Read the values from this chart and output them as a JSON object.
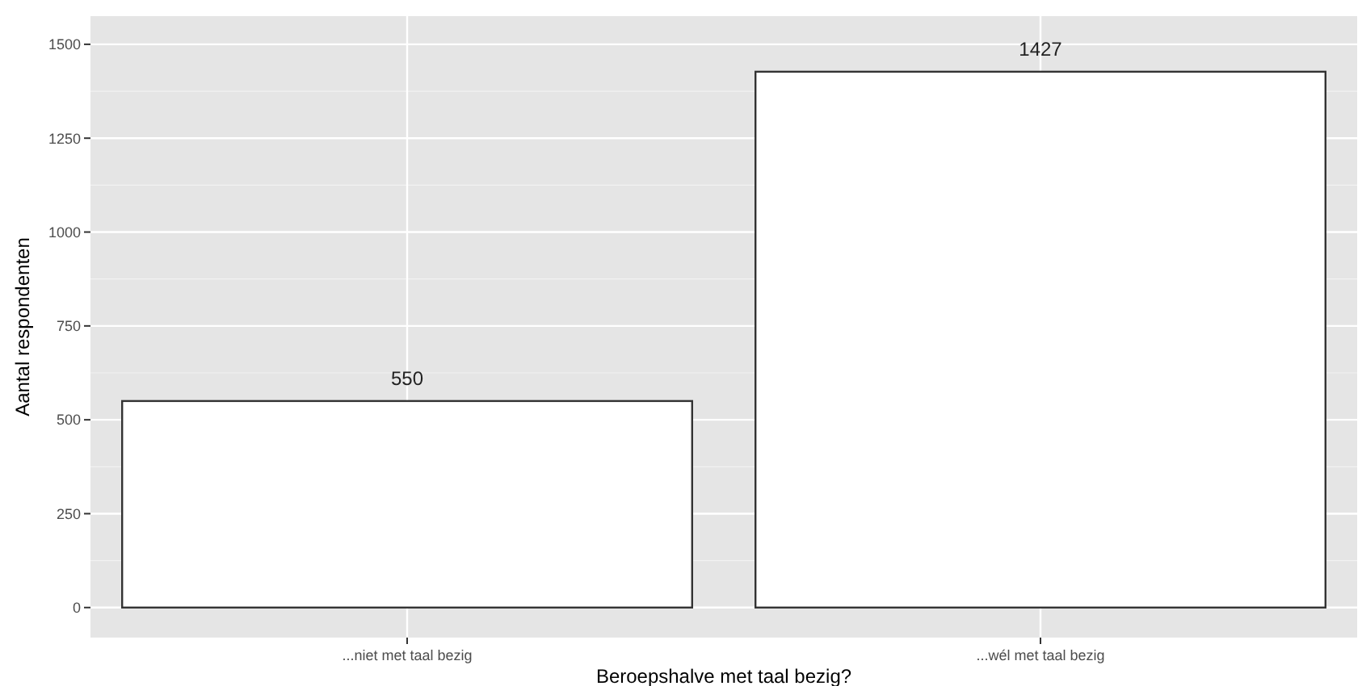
{
  "chart_data": {
    "type": "bar",
    "xlabel": "Beroepshalve met taal bezig?",
    "ylabel": "Aantal respondenten",
    "categories": [
      "...niet met taal bezig",
      "...wél met taal bezig"
    ],
    "values": [
      550,
      1427
    ],
    "color": "#ffffff",
    "ylim": [
      -80,
      1575
    ],
    "yticks": [
      0,
      250,
      500,
      750,
      1000,
      1250,
      1500
    ],
    "grid": true,
    "data_labels": true
  }
}
